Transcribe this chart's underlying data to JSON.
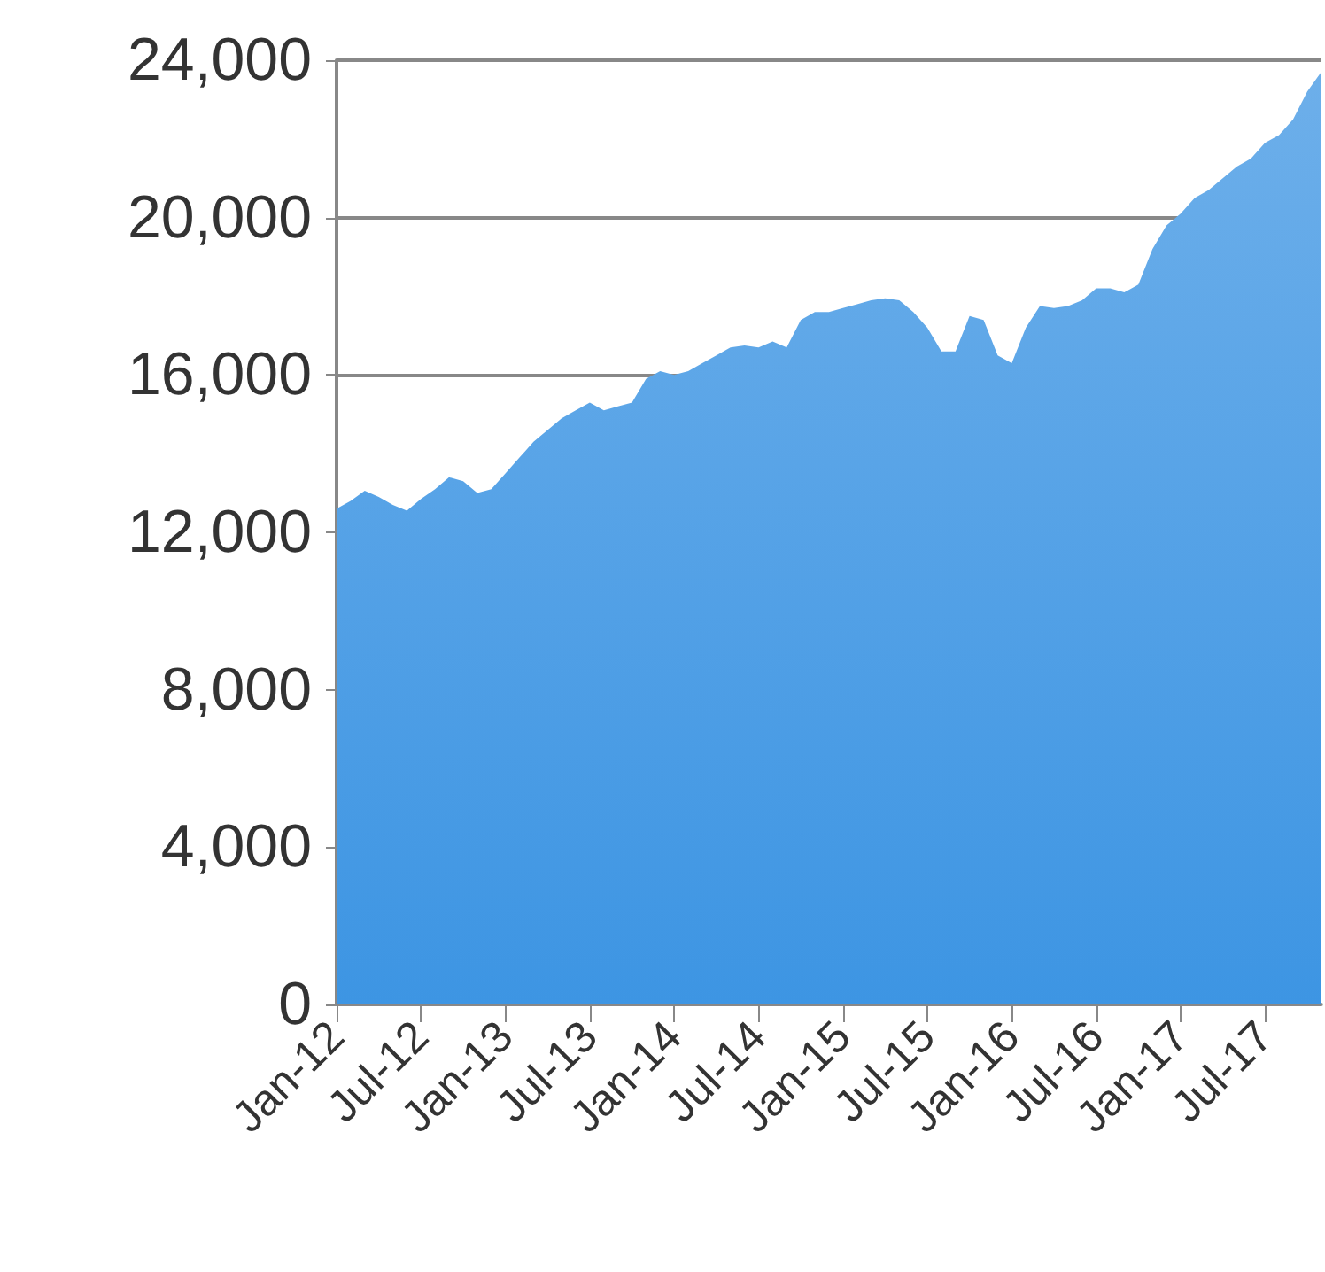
{
  "chart_data": {
    "type": "area",
    "categories": [
      "Jan-12",
      null,
      null,
      null,
      null,
      null,
      "Jul-12",
      null,
      null,
      null,
      null,
      null,
      "Jan-13",
      null,
      null,
      null,
      null,
      null,
      "Jul-13",
      null,
      null,
      null,
      null,
      null,
      "Jan-14",
      null,
      null,
      null,
      null,
      null,
      "Jul-14",
      null,
      null,
      null,
      null,
      null,
      "Jan-15",
      null,
      null,
      null,
      null,
      null,
      "Jul-15",
      null,
      null,
      null,
      null,
      null,
      "Jan-16",
      null,
      null,
      null,
      null,
      null,
      "Jul-16",
      null,
      null,
      null,
      null,
      null,
      "Jan-17",
      null,
      null,
      null,
      null,
      null,
      "Jul-17",
      null,
      null,
      null,
      null
    ],
    "series": [
      {
        "color": "#3d95e3",
        "values": [
          12600,
          12800,
          13060,
          12900,
          12700,
          12550,
          12850,
          13100,
          13400,
          13300,
          13000,
          13100,
          13500,
          13900,
          14300,
          14600,
          14900,
          15100,
          15300,
          15100,
          15200,
          15300,
          15900,
          16100,
          16000,
          16100,
          16300,
          16500,
          16700,
          16750,
          16700,
          16850,
          16700,
          17400,
          17600,
          17600,
          17700,
          17800,
          17900,
          17950,
          17900,
          17600,
          17200,
          16600,
          16600,
          17500,
          17400,
          16500,
          16300,
          17200,
          17750,
          17700,
          17750,
          17900,
          18200,
          18200,
          18100,
          18300,
          19200,
          19800,
          20100,
          20500,
          20700,
          21000,
          21300,
          21500,
          21900,
          22100,
          22500,
          23200,
          23700
        ]
      }
    ],
    "ylim": [
      0,
      24000
    ],
    "yticks": [
      {
        "value": 0,
        "label": "0"
      },
      {
        "value": 4000,
        "label": "4,000"
      },
      {
        "value": 8000,
        "label": "8,000"
      },
      {
        "value": 12000,
        "label": "12,000"
      },
      {
        "value": 16000,
        "label": "16,000"
      },
      {
        "value": 20000,
        "label": "20,000"
      },
      {
        "value": 24000,
        "label": "24,000"
      }
    ],
    "grid": "y"
  }
}
